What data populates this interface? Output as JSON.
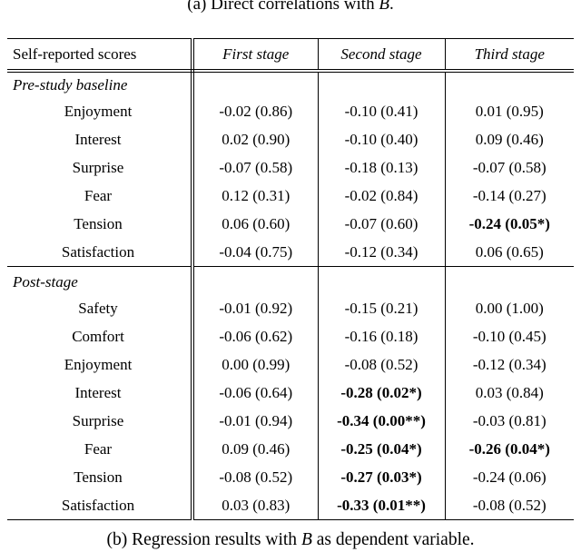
{
  "captions": {
    "top": {
      "prefix": "(a) Direct correlations with ",
      "math": "B",
      "suffix": "."
    },
    "bottom": {
      "prefix": "(b) Regression results with ",
      "math": "B",
      "suffix": " as dependent variable."
    }
  },
  "table": {
    "header": {
      "col0": "Self-reported scores",
      "cols": [
        "First stage",
        "Second stage",
        "Third stage"
      ]
    },
    "sections": [
      {
        "title": "Pre-study baseline",
        "rows": [
          {
            "label": "Enjoyment",
            "cells": [
              "-0.02 (0.86)",
              "-0.10 (0.41)",
              "0.01 (0.95)"
            ],
            "bold": [
              false,
              false,
              false
            ]
          },
          {
            "label": "Interest",
            "cells": [
              "0.02 (0.90)",
              "-0.10 (0.40)",
              "0.09 (0.46)"
            ],
            "bold": [
              false,
              false,
              false
            ]
          },
          {
            "label": "Surprise",
            "cells": [
              "-0.07 (0.58)",
              "-0.18 (0.13)",
              "-0.07 (0.58)"
            ],
            "bold": [
              false,
              false,
              false
            ]
          },
          {
            "label": "Fear",
            "cells": [
              "0.12 (0.31)",
              "-0.02 (0.84)",
              "-0.14 (0.27)"
            ],
            "bold": [
              false,
              false,
              false
            ]
          },
          {
            "label": "Tension",
            "cells": [
              "0.06 (0.60)",
              "-0.07 (0.60)",
              "-0.24 (0.05*)"
            ],
            "bold": [
              false,
              false,
              true
            ]
          },
          {
            "label": "Satisfaction",
            "cells": [
              "-0.04 (0.75)",
              "-0.12 (0.34)",
              "0.06 (0.65)"
            ],
            "bold": [
              false,
              false,
              false
            ]
          }
        ]
      },
      {
        "title": "Post-stage",
        "rows": [
          {
            "label": "Safety",
            "cells": [
              "-0.01 (0.92)",
              "-0.15 (0.21)",
              "0.00 (1.00)"
            ],
            "bold": [
              false,
              false,
              false
            ]
          },
          {
            "label": "Comfort",
            "cells": [
              "-0.06 (0.62)",
              "-0.16 (0.18)",
              "-0.10 (0.45)"
            ],
            "bold": [
              false,
              false,
              false
            ]
          },
          {
            "label": "Enjoyment",
            "cells": [
              "0.00 (0.99)",
              "-0.08 (0.52)",
              "-0.12 (0.34)"
            ],
            "bold": [
              false,
              false,
              false
            ]
          },
          {
            "label": "Interest",
            "cells": [
              "-0.06 (0.64)",
              "-0.28 (0.02*)",
              "0.03 (0.84)"
            ],
            "bold": [
              false,
              true,
              false
            ]
          },
          {
            "label": "Surprise",
            "cells": [
              "-0.01 (0.94)",
              "-0.34 (0.00**)",
              "-0.03 (0.81)"
            ],
            "bold": [
              false,
              true,
              false
            ]
          },
          {
            "label": "Fear",
            "cells": [
              "0.09 (0.46)",
              "-0.25 (0.04*)",
              "-0.26 (0.04*)"
            ],
            "bold": [
              false,
              true,
              true
            ]
          },
          {
            "label": "Tension",
            "cells": [
              "-0.08 (0.52)",
              "-0.27 (0.03*)",
              "-0.24 (0.06)"
            ],
            "bold": [
              false,
              true,
              false
            ]
          },
          {
            "label": "Satisfaction",
            "cells": [
              "0.03 (0.83)",
              "-0.33 (0.01**)",
              "-0.08 (0.52)"
            ],
            "bold": [
              false,
              true,
              false
            ]
          }
        ]
      }
    ]
  }
}
